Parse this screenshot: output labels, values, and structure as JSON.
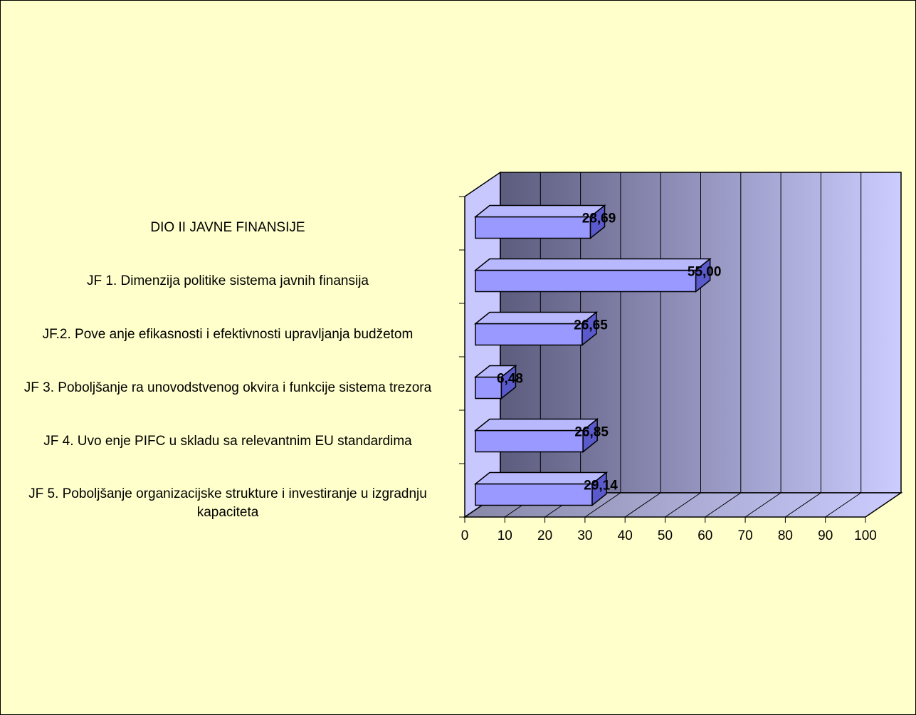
{
  "chart_data": {
    "type": "bar",
    "orientation": "horizontal",
    "style": "3d",
    "categories": [
      "DIO II JAVNE FINANSIJE",
      "JF 1. Dimenzija politike sistema javnih finansija",
      "JF.2. Pove  anje efikasnosti i efektivnosti upravljanja budžetom",
      "JF 3. Poboljšanje ra  unovodstvenog okvira i funkcije sistema trezora",
      "JF 4. Uvo  enje PIFC u skladu sa relevantnim EU standardima",
      "JF 5. Poboljšanje organizacijske strukture i investiranje u izgradnju kapaciteta"
    ],
    "values": [
      28.69,
      55.0,
      26.65,
      6.48,
      26.85,
      29.14
    ],
    "value_labels": [
      "28,69",
      "55,00",
      "26,65",
      "6,48",
      "26,85",
      "29,14"
    ],
    "xlim": [
      0,
      100
    ],
    "xticks": [
      "0",
      "10",
      "20",
      "30",
      "40",
      "50",
      "60",
      "70",
      "80",
      "90",
      "100"
    ],
    "grid": true,
    "legend": "none",
    "colors": {
      "background": "#ffffcc",
      "bar_front": "#9999ff",
      "bar_top": "#b8b8ff",
      "bar_side": "#5a5acc",
      "wall_dark": "#5c5c7e",
      "wall_light": "#ccccff",
      "side_wall": "#c8c8ff",
      "floor": "#8888a8",
      "gridline": "#000000"
    }
  }
}
